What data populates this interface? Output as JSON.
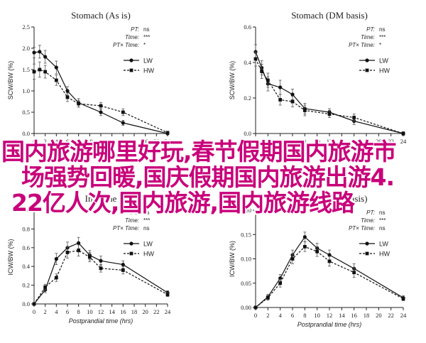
{
  "banner": {
    "line1": "国内旅游哪里好玩,春节假期国内旅游市",
    "line2": "场强势回暖,国庆假期国内旅游出游4.",
    "line3": "22亿人次,国内旅游,国内旅游线路"
  },
  "chart_data": [
    {
      "type": "line",
      "title": "Stomach (As is)",
      "xlabel": "",
      "ylabel": "SCW/BW (%)",
      "xlim": [
        0,
        24
      ],
      "ylim": [
        0,
        2.5
      ],
      "xticks": [
        "0",
        "2",
        "4",
        "6",
        "8",
        "10",
        "12",
        "14",
        "16",
        "18",
        "20",
        "22",
        "24"
      ],
      "yticks": [
        "0.0",
        "0.5",
        "1.0",
        "1.5",
        "2.0",
        "2.5"
      ],
      "stats": [
        {
          "label": "PT:",
          "value": "ns"
        },
        {
          "label": "Time:",
          "value": "***"
        },
        {
          "label": "PT× Time:",
          "value": "*"
        }
      ],
      "x": [
        0,
        1,
        2,
        4,
        6,
        8,
        12,
        16,
        24
      ],
      "series": [
        {
          "name": "LW",
          "style": "solid",
          "marker": "circle-filled",
          "values": [
            1.9,
            1.92,
            1.8,
            1.55,
            1.0,
            0.72,
            0.5,
            0.25,
            0.0
          ],
          "errors": [
            0.12,
            0.15,
            0.15,
            0.15,
            0.1,
            0.1,
            0.08,
            0.06,
            0.02
          ]
        },
        {
          "name": "HW",
          "style": "dashed",
          "marker": "square-filled",
          "values": [
            1.45,
            1.5,
            1.45,
            1.25,
            0.85,
            0.7,
            0.65,
            0.5,
            0.02
          ],
          "errors": [
            0.18,
            0.18,
            0.15,
            0.12,
            0.1,
            0.08,
            0.08,
            0.08,
            0.02
          ]
        }
      ]
    },
    {
      "type": "line",
      "title": "Stomach (DM basis)",
      "xlabel": "",
      "ylabel": "SCW/BW (%)",
      "xlim": [
        0,
        24
      ],
      "ylim": [
        0,
        0.6
      ],
      "xticks": [
        "0",
        "2",
        "4",
        "6",
        "8",
        "10",
        "12",
        "14",
        "16",
        "18",
        "20",
        "22",
        "24"
      ],
      "yticks": [
        "0.0",
        "0.2",
        "0.4",
        "0.6"
      ],
      "stats": [
        {
          "label": "PT:",
          "value": "ns"
        },
        {
          "label": "Time:",
          "value": "***"
        },
        {
          "label": "PT× Time:",
          "value": "*"
        }
      ],
      "x": [
        0,
        1,
        2,
        4,
        6,
        8,
        12,
        16,
        24
      ],
      "series": [
        {
          "name": "LW",
          "style": "solid",
          "marker": "circle-filled",
          "values": [
            0.46,
            0.37,
            0.28,
            0.26,
            0.22,
            0.14,
            0.12,
            0.07,
            0.0
          ],
          "errors": [
            0.04,
            0.04,
            0.04,
            0.04,
            0.03,
            0.03,
            0.02,
            0.02,
            0.01
          ]
        },
        {
          "name": "HW",
          "style": "dashed",
          "marker": "square-filled",
          "values": [
            0.42,
            0.35,
            0.3,
            0.19,
            0.18,
            0.13,
            0.11,
            0.09,
            0.0
          ],
          "errors": [
            0.04,
            0.04,
            0.04,
            0.03,
            0.03,
            0.03,
            0.02,
            0.02,
            0.01
          ]
        }
      ]
    },
    {
      "type": "line",
      "title": "Intestine",
      "xlabel": "Postprandial time (hrs)",
      "ylabel": "ICW/BW (%)",
      "xlim": [
        0,
        24
      ],
      "ylim": [
        0,
        1.0
      ],
      "xticks": [
        "0",
        "2",
        "4",
        "6",
        "8",
        "10",
        "12",
        "14",
        "16",
        "18",
        "20",
        "22",
        "24"
      ],
      "yticks": [
        "0.0",
        "0.2",
        "0.4",
        "0.6",
        "0.8",
        "1.0"
      ],
      "stats": [
        {
          "label": "PT:",
          "value": "ns"
        },
        {
          "label": "Time:",
          "value": "***"
        },
        {
          "label": "PT× Time:",
          "value": "ns"
        }
      ],
      "x": [
        0,
        2,
        4,
        6,
        8,
        10,
        12,
        16,
        24
      ],
      "series": [
        {
          "name": "LW",
          "style": "solid",
          "marker": "circle-filled",
          "values": [
            0.0,
            0.15,
            0.48,
            0.6,
            0.65,
            0.52,
            0.46,
            0.42,
            0.12
          ],
          "errors": [
            0.01,
            0.03,
            0.06,
            0.06,
            0.06,
            0.05,
            0.05,
            0.04,
            0.02
          ]
        },
        {
          "name": "HW",
          "style": "dashed",
          "marker": "square-filled",
          "values": [
            0.0,
            0.18,
            0.28,
            0.55,
            0.57,
            0.5,
            0.38,
            0.36,
            0.1
          ],
          "errors": [
            0.01,
            0.03,
            0.04,
            0.06,
            0.06,
            0.05,
            0.04,
            0.04,
            0.02
          ]
        }
      ]
    },
    {
      "type": "line",
      "title": "Intestine (DM basis)",
      "xlabel": "Postprandial time (hrs)",
      "ylabel": "ICW/BW (%)",
      "xlim": [
        0,
        24
      ],
      "ylim": [
        0,
        0.2
      ],
      "xticks": [
        "0",
        "2",
        "4",
        "6",
        "8",
        "10",
        "12",
        "14",
        "16",
        "18",
        "20",
        "22",
        "24"
      ],
      "yticks": [
        "0.00",
        "0.05",
        "0.10",
        "0.15",
        "0.20"
      ],
      "stats": [
        {
          "label": "PT:",
          "value": "ns"
        },
        {
          "label": "Time:",
          "value": "***"
        },
        {
          "label": "PT× Time:",
          "value": "ns"
        }
      ],
      "x": [
        0,
        2,
        4,
        6,
        8,
        10,
        12,
        16,
        24
      ],
      "series": [
        {
          "name": "LW",
          "style": "solid",
          "marker": "circle-filled",
          "values": [
            0.0,
            0.022,
            0.06,
            0.108,
            0.145,
            0.122,
            0.108,
            0.08,
            0.02
          ],
          "errors": [
            0.002,
            0.005,
            0.008,
            0.01,
            0.01,
            0.01,
            0.01,
            0.01,
            0.004
          ]
        },
        {
          "name": "HW",
          "style": "dashed",
          "marker": "square-filled",
          "values": [
            0.0,
            0.02,
            0.05,
            0.1,
            0.125,
            0.115,
            0.095,
            0.072,
            0.018
          ],
          "errors": [
            0.002,
            0.005,
            0.008,
            0.01,
            0.01,
            0.01,
            0.01,
            0.01,
            0.004
          ]
        }
      ]
    }
  ]
}
